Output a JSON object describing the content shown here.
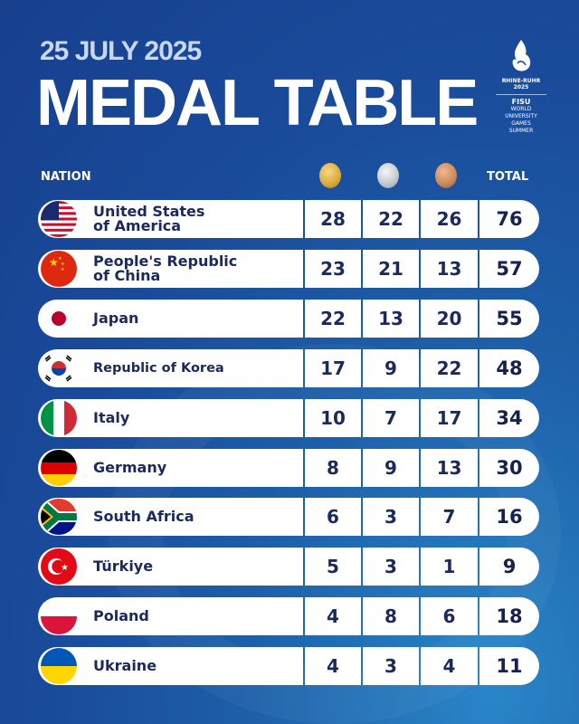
{
  "header": {
    "date": "25 JULY 2025",
    "title": "MEDAL TABLE"
  },
  "logo": {
    "event": "RHINE-RUHR",
    "year": "2025",
    "org": "FISU",
    "lines": [
      "WORLD",
      "UNIVERSITY",
      "GAMES",
      "SUMMER"
    ]
  },
  "columns": {
    "nation": "NATION",
    "gold": "gold-medal-icon",
    "silver": "silver-medal-icon",
    "bronze": "bronze-medal-icon",
    "total": "TOTAL"
  },
  "colors": {
    "background": "#1a4a9a",
    "text": "#1b2a5c",
    "gold": "#d8a93a",
    "silver": "#c2c6cc",
    "bronze": "#c8875a"
  },
  "rows": [
    {
      "nation": "United States\nof America",
      "flag": "us",
      "gold": "28",
      "silver": "22",
      "bronze": "26",
      "total": "76"
    },
    {
      "nation": "People's Republic\nof China",
      "flag": "cn",
      "gold": "23",
      "silver": "21",
      "bronze": "13",
      "total": "57"
    },
    {
      "nation": "Japan",
      "flag": "jp",
      "gold": "22",
      "silver": "13",
      "bronze": "20",
      "total": "55"
    },
    {
      "nation": "Republic of Korea",
      "flag": "kr",
      "gold": "17",
      "silver": "9",
      "bronze": "22",
      "total": "48"
    },
    {
      "nation": "Italy",
      "flag": "it",
      "gold": "10",
      "silver": "7",
      "bronze": "17",
      "total": "34"
    },
    {
      "nation": "Germany",
      "flag": "de",
      "gold": "8",
      "silver": "9",
      "bronze": "13",
      "total": "30"
    },
    {
      "nation": "South Africa",
      "flag": "za",
      "gold": "6",
      "silver": "3",
      "bronze": "7",
      "total": "16"
    },
    {
      "nation": "Türkiye",
      "flag": "tr",
      "gold": "5",
      "silver": "3",
      "bronze": "1",
      "total": "9"
    },
    {
      "nation": "Poland",
      "flag": "pl",
      "gold": "4",
      "silver": "8",
      "bronze": "6",
      "total": "18"
    },
    {
      "nation": "Ukraine",
      "flag": "ua",
      "gold": "4",
      "silver": "3",
      "bronze": "4",
      "total": "11"
    }
  ]
}
